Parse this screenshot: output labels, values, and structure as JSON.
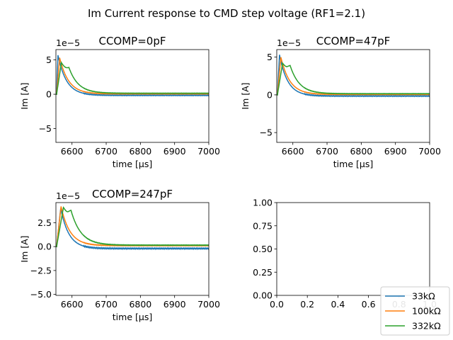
{
  "figure_title": "Im Current response to CMD step voltage (RF1=2.1)",
  "colors": {
    "s0": "#1f77b4",
    "s1": "#ff7f0e",
    "s2": "#2ca02c"
  },
  "legend": {
    "placement": "bottom-right",
    "entries": [
      "33kΩ",
      "100kΩ",
      "332kΩ"
    ]
  },
  "chart_data": [
    {
      "type": "line",
      "title": "CCOMP=0pF",
      "xlabel": "time [μs]",
      "ylabel": "Im [A]",
      "offset_text": "1e−5",
      "xlim": [
        6553,
        7000
      ],
      "ylim": [
        -7,
        6.5
      ],
      "xticks": [
        6600,
        6700,
        6800,
        6900,
        7000
      ],
      "xtick_labels": [
        "6600",
        "6700",
        "6800",
        "6900",
        "7000"
      ],
      "yticks": [
        -5,
        0,
        5
      ],
      "ytick_labels": [
        "−5",
        "0",
        "5"
      ],
      "series": [
        {
          "name": "33kΩ",
          "peak_x": 6559,
          "peak": 5.7,
          "tau": 25,
          "plateau": 0,
          "final": -0.15
        },
        {
          "name": "100kΩ",
          "peak_x": 6564,
          "peak": 5.3,
          "tau": 26,
          "plateau": 0,
          "final": 0.05
        },
        {
          "name": "332kΩ",
          "peak_x": 6569,
          "peak": 4.6,
          "tau": 27,
          "plateau": 3.9,
          "final": 0.15
        }
      ]
    },
    {
      "type": "line",
      "title": "CCOMP=47pF",
      "xlabel": "time [μs]",
      "ylabel": "Im [A]",
      "offset_text": "1e−5",
      "xlim": [
        6553,
        7000
      ],
      "ylim": [
        -6.3,
        6.0
      ],
      "xticks": [
        6600,
        6700,
        6800,
        6900,
        7000
      ],
      "xtick_labels": [
        "6600",
        "6700",
        "6800",
        "6900",
        "7000"
      ],
      "yticks": [
        -5,
        0,
        5
      ],
      "ytick_labels": [
        "−5",
        "0",
        "5"
      ],
      "series": [
        {
          "name": "33kΩ",
          "peak_x": 6561,
          "peak": 5.3,
          "tau": 24,
          "plateau": 0,
          "final": -0.15
        },
        {
          "name": "100kΩ",
          "peak_x": 6565,
          "peak": 5.0,
          "tau": 26,
          "plateau": 0,
          "final": 0.05
        },
        {
          "name": "332kΩ",
          "peak_x": 6570,
          "peak": 4.2,
          "tau": 27,
          "plateau": 3.9,
          "final": 0.15
        }
      ]
    },
    {
      "type": "line",
      "title": "CCOMP=247pF",
      "xlabel": "time [μs]",
      "ylabel": "Im [A]",
      "offset_text": "1e−5",
      "xlim": [
        6553,
        7000
      ],
      "ylim": [
        -5.1,
        4.6
      ],
      "xticks": [
        6600,
        6700,
        6800,
        6900,
        7000
      ],
      "xtick_labels": [
        "6600",
        "6700",
        "6800",
        "6900",
        "7000"
      ],
      "yticks": [
        -5.0,
        -2.5,
        0.0,
        2.5
      ],
      "ytick_labels": [
        "−5.0",
        "−2.5",
        "0.0",
        "2.5"
      ],
      "series": [
        {
          "name": "33kΩ",
          "peak_x": 6567,
          "peak": 4.0,
          "tau": 24,
          "plateau": 0,
          "final": -0.2
        },
        {
          "name": "100kΩ",
          "peak_x": 6568,
          "peak": 4.2,
          "tau": 26,
          "plateau": 0,
          "final": 0.1
        },
        {
          "name": "332kΩ",
          "peak_x": 6575,
          "peak": 4.1,
          "tau": 29,
          "plateau": 3.8,
          "final": 0.15
        }
      ]
    },
    {
      "type": "line",
      "title": "",
      "xlabel": "",
      "ylabel": "",
      "xlim": [
        0,
        1
      ],
      "ylim": [
        0,
        1
      ],
      "xticks": [
        0,
        0.2,
        0.4,
        0.6,
        0.8,
        1.0
      ],
      "xtick_labels": [
        "0.0",
        "0.2",
        "0.4",
        "0.6",
        "0.8",
        "1.0"
      ],
      "yticks": [
        0,
        0.25,
        0.5,
        0.75,
        1.0
      ],
      "ytick_labels": [
        "0.00",
        "0.25",
        "0.50",
        "0.75",
        "1.00"
      ],
      "series": []
    }
  ]
}
